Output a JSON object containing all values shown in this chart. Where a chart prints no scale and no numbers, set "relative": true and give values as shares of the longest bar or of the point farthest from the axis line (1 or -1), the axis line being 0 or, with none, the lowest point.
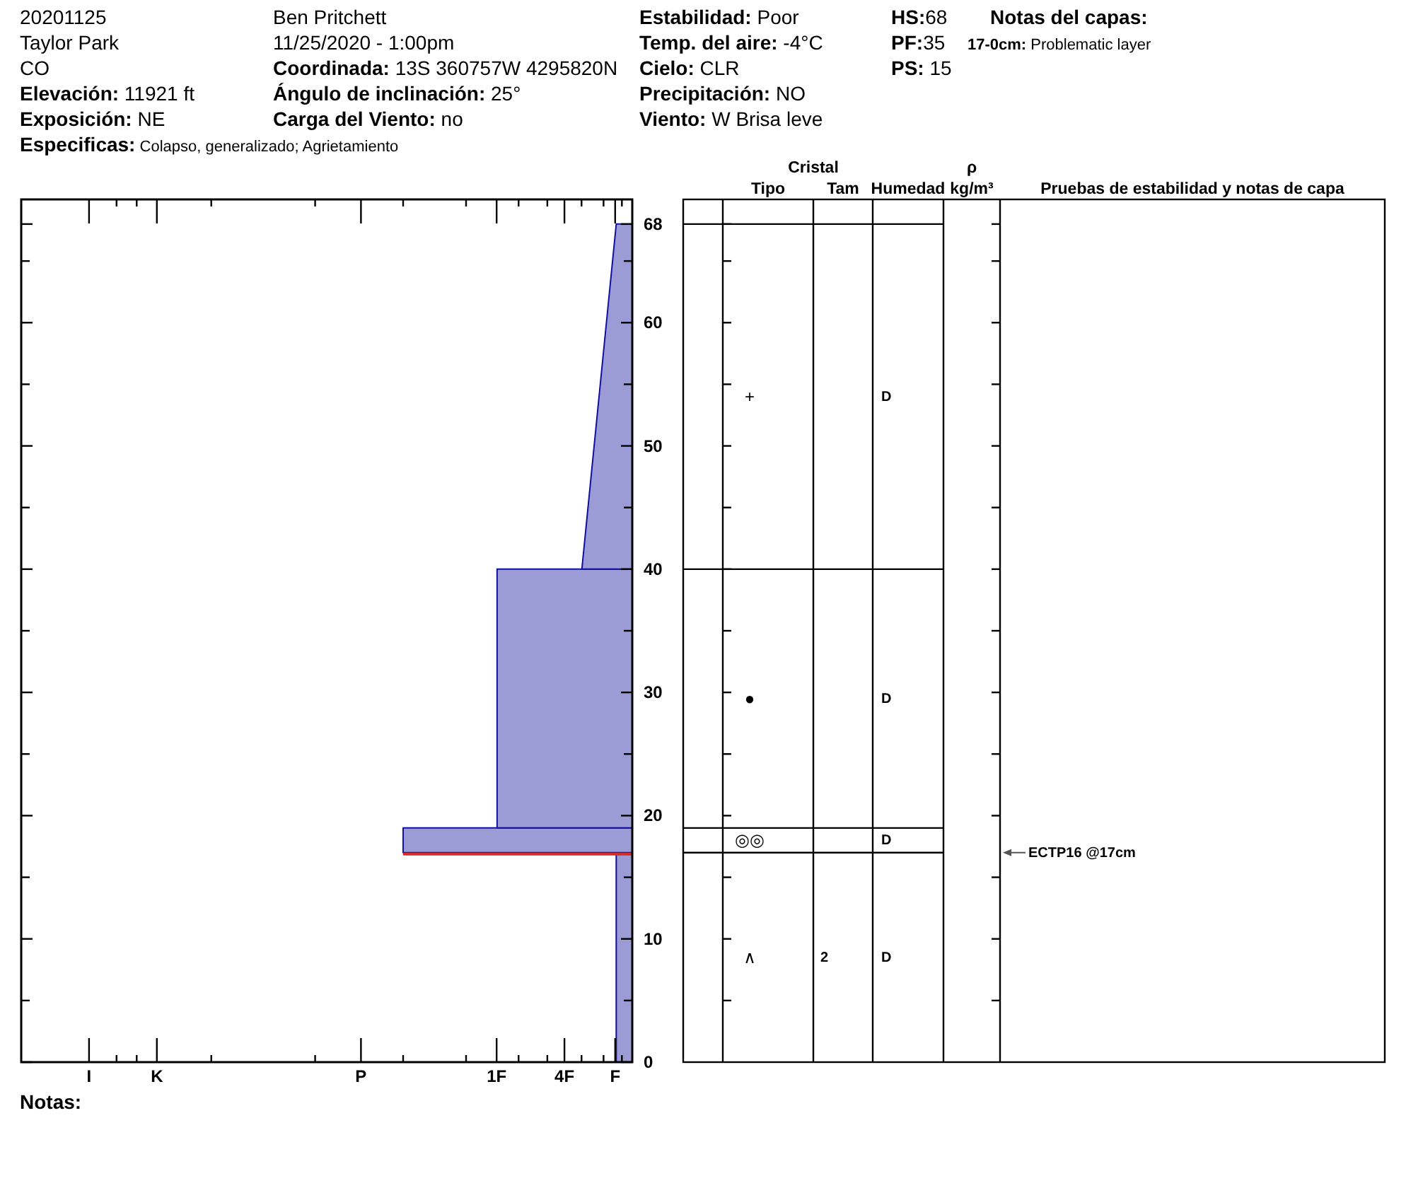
{
  "chart_data": [
    {
      "type": "area",
      "orientation": "horizontal",
      "relative": true,
      "series": [
        {
          "x": [
            0,
            17
          ],
          "values": [
            -0.07,
            -0.07
          ],
          "color": "#9b9bd6"
        },
        {
          "x": [
            17,
            19
          ],
          "values": [
            -1,
            -1
          ],
          "color": "#9b9bd6"
        },
        {
          "x": [
            19,
            40
          ],
          "values": [
            -0.59,
            -0.59
          ],
          "color": "#9b9bd6"
        },
        {
          "x": [
            40,
            68
          ],
          "values": [
            -0.22,
            -0.07
          ],
          "color": "#9b9bd6"
        }
      ],
      "ylim": [
        0,
        70
      ],
      "yticks": [
        0,
        {
          "value": 5,
          "label": null
        },
        10,
        {
          "value": 15,
          "label": null
        },
        20,
        {
          "value": 25,
          "label": null
        },
        30,
        {
          "value": 35,
          "label": null
        },
        40,
        {
          "value": 45,
          "label": null
        },
        50,
        {
          "value": 55,
          "label": null
        },
        60,
        {
          "value": 65,
          "label": null
        },
        68
      ],
      "ref_lines": [
        {
          "axis": "y",
          "value": 17,
          "color": "#d42a2a"
        }
      ],
      "annotations": [
        "20201125",
        "Taylor Park",
        "CO",
        "Elevación: 11921 ft",
        "Exposición: NE",
        "Especificas: Colapso, generalizado; Agrietamiento",
        "Ben Pritchett",
        "11/25/2020 - 1:00pm",
        "Coordinada: 13S 360757W 4295820N",
        "Ángulo de inclinación: 25°",
        "Carga del Viento: no",
        "Estabilidad: Poor",
        "Temp. del aire: -4°C",
        "Cielo: CLR",
        "Precipitación: NO",
        "Viento: W Brisa leve",
        "HS:68",
        "PF:35",
        "PS: 15",
        "Notas del capas:",
        "17-0cm: Problematic layer",
        "Notas:",
        "I",
        "K",
        "P",
        "1F",
        "4F",
        "F"
      ]
    },
    {
      "type": "other",
      "categories": [
        null,
        "Tipo",
        "Tam",
        "Humedad",
        "ρ\nkg/m³",
        "Pruebas de estabilidad y notas de capa"
      ],
      "annotations": [
        "Cristal",
        "+",
        "D",
        "●",
        "D",
        "◎◎",
        "D",
        "∧",
        "2",
        "D",
        "ECTP16 @17cm"
      ]
    }
  ]
}
